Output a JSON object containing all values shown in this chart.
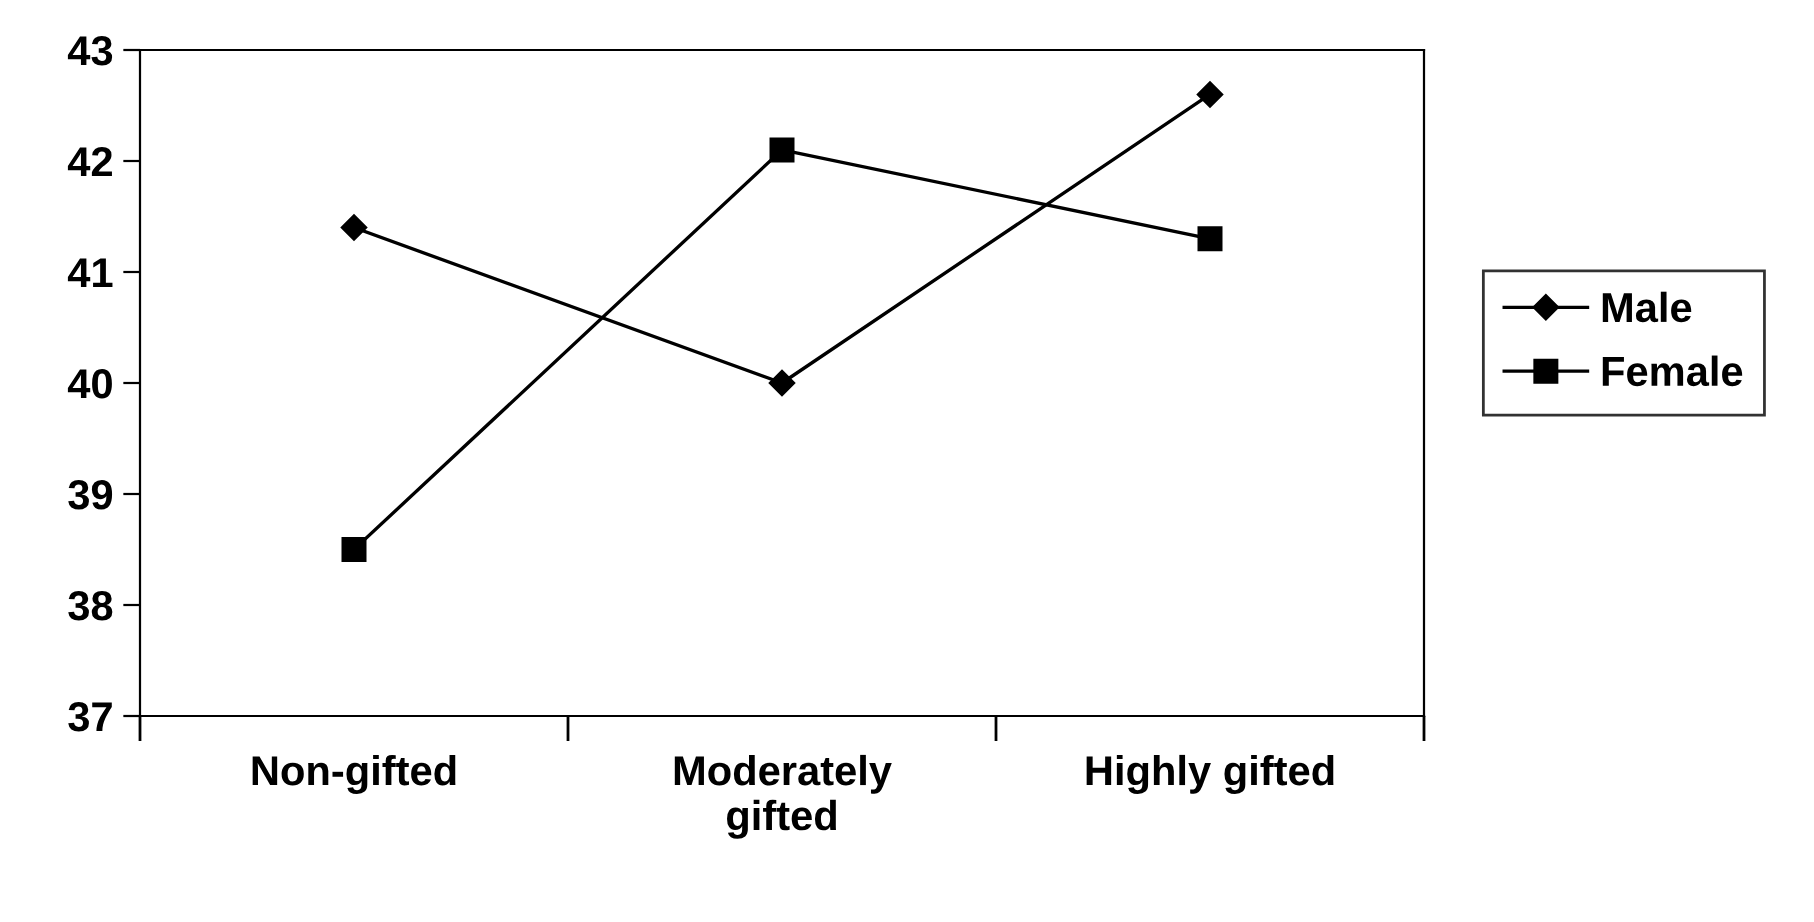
{
  "chart_data": {
    "type": "line",
    "categories": [
      "Non-gifted",
      "Moderately\ngifted",
      "Highly gifted"
    ],
    "series": [
      {
        "name": "Male",
        "color": "#000000",
        "marker": "diamond",
        "values": [
          41.4,
          40.0,
          42.6
        ]
      },
      {
        "name": "Female",
        "color": "#000000",
        "marker": "square",
        "values": [
          38.5,
          42.1,
          41.3
        ]
      }
    ],
    "ylim": [
      37,
      43
    ],
    "yticks": [
      37,
      38,
      39,
      40,
      41,
      42,
      43
    ],
    "grid": false,
    "legend": "right",
    "line_style": "solid"
  }
}
